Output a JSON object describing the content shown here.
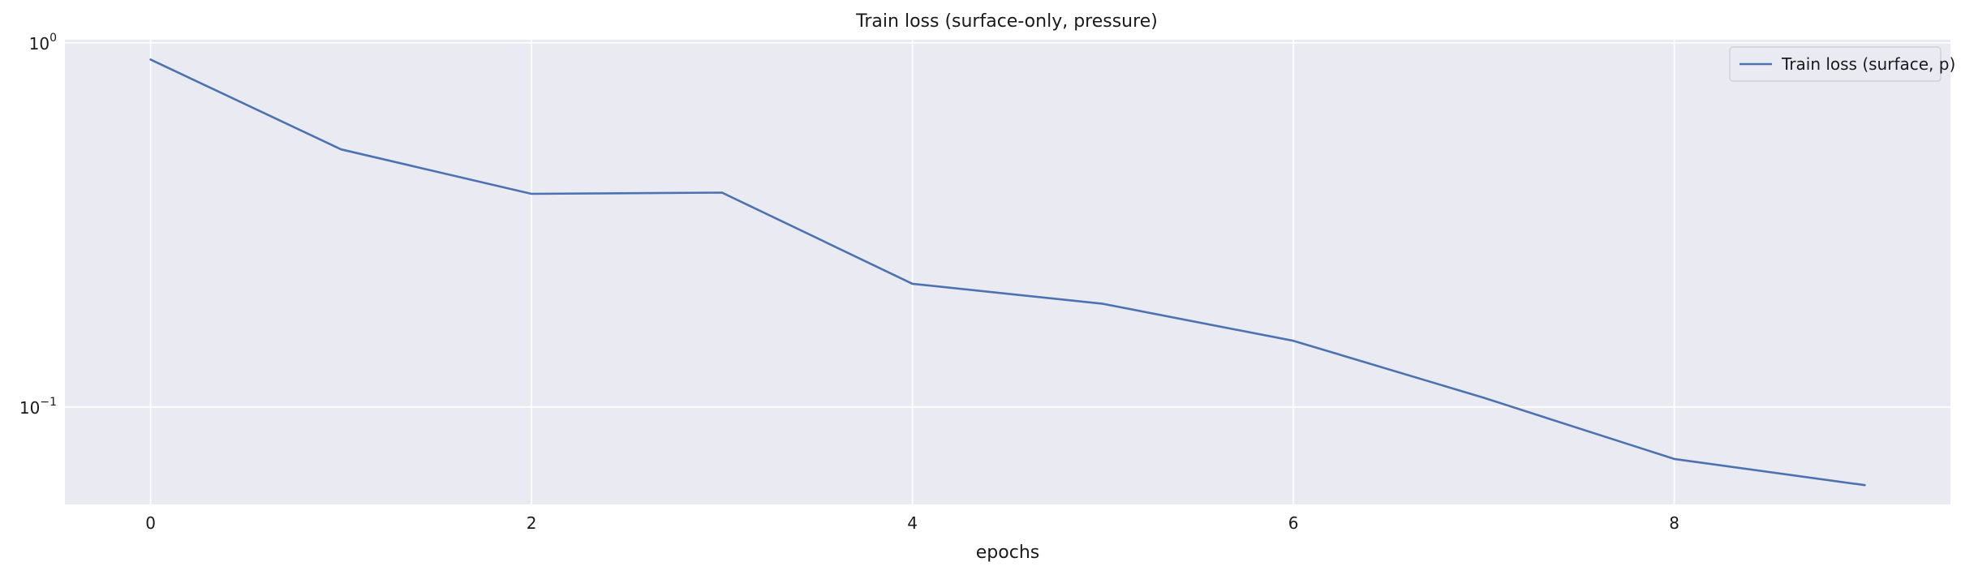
{
  "chart_data": {
    "type": "line",
    "title": "Train loss (surface-only, pressure)",
    "xlabel": "epochs",
    "ylabel": "",
    "yscale": "log",
    "xlim": [
      -0.45,
      9.45
    ],
    "ylim": [
      0.054,
      1.02
    ],
    "x": [
      0,
      1,
      2,
      3,
      4,
      5,
      6,
      7,
      8,
      9
    ],
    "x_ticks": [
      0,
      2,
      4,
      6,
      8
    ],
    "y_ticks": [
      {
        "value": 1.0,
        "base": "10",
        "exp": "0"
      },
      {
        "value": 0.1,
        "base": "10",
        "exp": "−1"
      }
    ],
    "grid": true,
    "legend_position": "top-right",
    "series": [
      {
        "name": "Train loss (surface, p)",
        "color": "#4c72b0",
        "values": [
          0.9,
          0.51,
          0.385,
          0.388,
          0.218,
          0.192,
          0.152,
          0.106,
          0.072,
          0.061
        ]
      }
    ],
    "colors": {
      "plot_background": "#eaeaf2",
      "grid": "#ffffff",
      "text": "#1a1a1a",
      "legend_border": "#cccccc"
    }
  }
}
